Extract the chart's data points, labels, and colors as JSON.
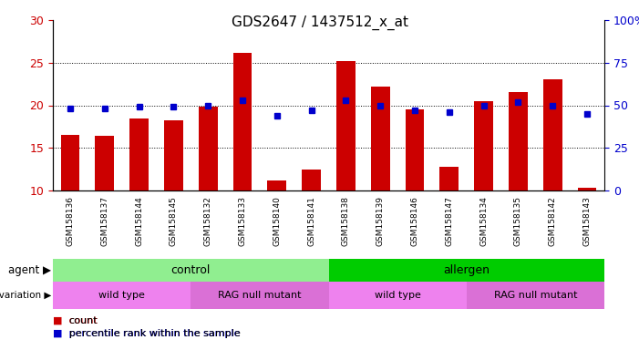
{
  "title": "GDS2647 / 1437512_x_at",
  "samples": [
    "GSM158136",
    "GSM158137",
    "GSM158144",
    "GSM158145",
    "GSM158132",
    "GSM158133",
    "GSM158140",
    "GSM158141",
    "GSM158138",
    "GSM158139",
    "GSM158146",
    "GSM158147",
    "GSM158134",
    "GSM158135",
    "GSM158142",
    "GSM158143"
  ],
  "counts": [
    16.5,
    16.4,
    18.5,
    18.2,
    19.8,
    26.2,
    11.2,
    12.5,
    25.2,
    22.2,
    19.5,
    12.8,
    20.5,
    21.5,
    23.0,
    10.3
  ],
  "percentiles": [
    48,
    48,
    49,
    49,
    50,
    53,
    44,
    47,
    53,
    50,
    47,
    46,
    50,
    52,
    50,
    45
  ],
  "bar_color": "#cc0000",
  "dot_color": "#0000cc",
  "ylim_left": [
    10,
    30
  ],
  "yticks_left": [
    10,
    15,
    20,
    25,
    30
  ],
  "ylim_right": [
    0,
    100
  ],
  "yticks_right": [
    0,
    25,
    50,
    75,
    100
  ],
  "agent_groups": [
    {
      "label": "control",
      "start": 0,
      "end": 8,
      "color": "#90ee90"
    },
    {
      "label": "allergen",
      "start": 8,
      "end": 16,
      "color": "#00cc00"
    }
  ],
  "genotype_groups": [
    {
      "label": "wild type",
      "start": 0,
      "end": 4,
      "color": "#ee82ee"
    },
    {
      "label": "RAG null mutant",
      "start": 4,
      "end": 8,
      "color": "#da70d6"
    },
    {
      "label": "wild type",
      "start": 8,
      "end": 12,
      "color": "#ee82ee"
    },
    {
      "label": "RAG null mutant",
      "start": 12,
      "end": 16,
      "color": "#da70d6"
    }
  ],
  "legend_count_color": "#cc0000",
  "legend_dot_color": "#0000cc",
  "left_axis_color": "#cc0000",
  "right_axis_color": "#0000cc",
  "tick_label_bg": "#c8c8c8"
}
